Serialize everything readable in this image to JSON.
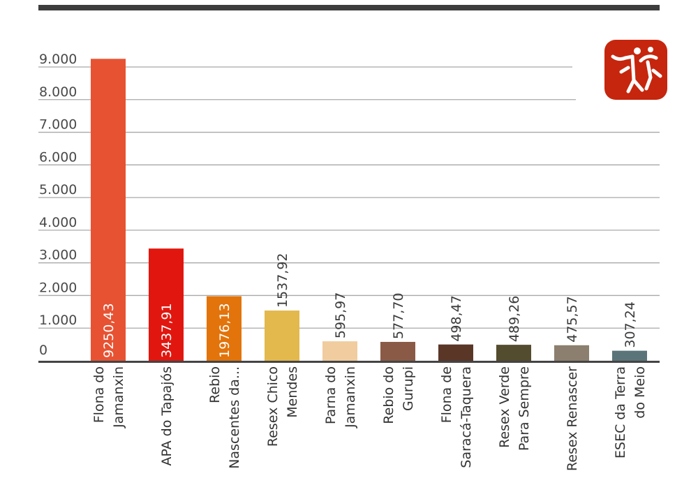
{
  "chart_data": {
    "type": "bar",
    "title": "",
    "xlabel": "",
    "ylabel": "",
    "ylim": [
      0,
      9000
    ],
    "yticks": [
      {
        "value": 0,
        "label": "0"
      },
      {
        "value": 1000,
        "label": "1.000"
      },
      {
        "value": 2000,
        "label": "2.000"
      },
      {
        "value": 3000,
        "label": "3.000"
      },
      {
        "value": 4000,
        "label": "4.000"
      },
      {
        "value": 5000,
        "label": "5.000"
      },
      {
        "value": 6000,
        "label": "6.000"
      },
      {
        "value": 7000,
        "label": "7.000"
      },
      {
        "value": 8000,
        "label": "8.000"
      },
      {
        "value": 9000,
        "label": "9.000"
      }
    ],
    "grid": true,
    "bars": [
      {
        "category": [
          "Flona do",
          "Jamanxin"
        ],
        "value": 9250.43,
        "value_label": "9250,43",
        "color": "#e75232",
        "label_inside": true
      },
      {
        "category": [
          "APA do Tapajós"
        ],
        "value": 3437.91,
        "value_label": "3437,91",
        "color": "#e1170f",
        "label_inside": true
      },
      {
        "category": [
          "Rebio",
          "Nascentes da..."
        ],
        "value": 1976.13,
        "value_label": "1976,13",
        "color": "#e2740b",
        "label_inside": true
      },
      {
        "category": [
          "Resex Chico",
          "Mendes"
        ],
        "value": 1537.92,
        "value_label": "1537,92",
        "color": "#e3b84d",
        "label_inside": false
      },
      {
        "category": [
          "Parna do",
          "Jamanxin"
        ],
        "value": 595.97,
        "value_label": "595,97",
        "color": "#f0cc9e",
        "label_inside": false
      },
      {
        "category": [
          "Rebio do",
          "Gurupi"
        ],
        "value": 577.7,
        "value_label": "577,70",
        "color": "#8b5a47",
        "label_inside": false
      },
      {
        "category": [
          "Flona de",
          "Saracá-Taquera"
        ],
        "value": 498.47,
        "value_label": "498,47",
        "color": "#5a3627",
        "label_inside": false
      },
      {
        "category": [
          "Resex Verde",
          "Para Sempre"
        ],
        "value": 489.26,
        "value_label": "489,26",
        "color": "#544c2e",
        "label_inside": false
      },
      {
        "category": [
          "Resex Renascer"
        ],
        "value": 475.57,
        "value_label": "475,57",
        "color": "#8c7f6f",
        "label_inside": false
      },
      {
        "category": [
          "ESEC da Terra",
          "do Meio"
        ],
        "value": 307.24,
        "value_label": "307,24",
        "color": "#5b7479",
        "label_inside": false
      }
    ]
  },
  "style": {
    "top_bar_color": "#3d3d3d",
    "grid_color": "#a8a8a8",
    "axis_color": "#444444",
    "logo_color": "#c6260d"
  }
}
